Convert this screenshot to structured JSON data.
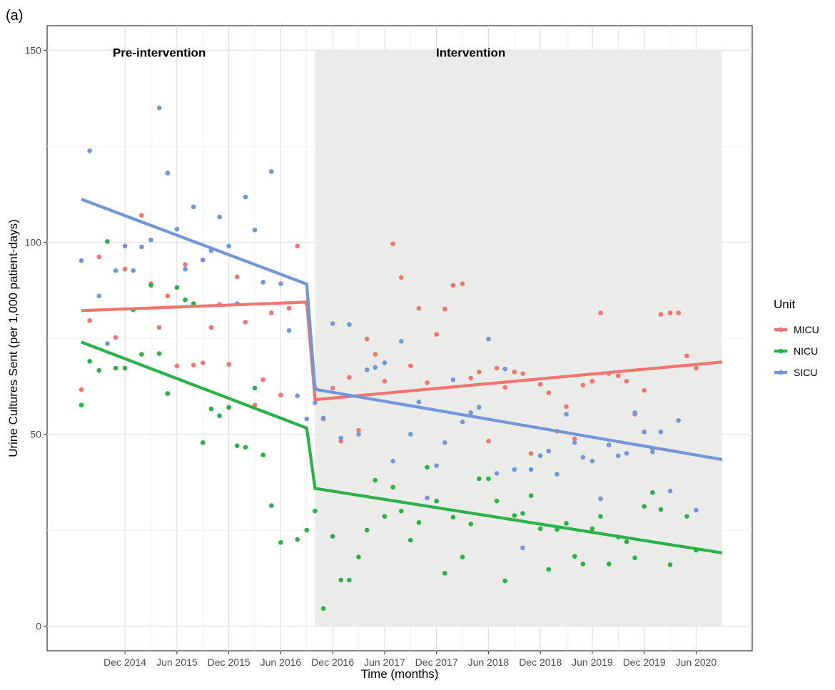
{
  "panel_label": "(a)",
  "colors": {
    "MICU": "#F0766D",
    "NICU": "#27B345",
    "SICU": "#6F97D9",
    "intervention_shade": "#EBEBEA",
    "grid": "#EBEBEB",
    "axis": "#333333",
    "tick_text": "#4D4D4D"
  },
  "chart_data": {
    "type": "scatter",
    "xlabel": "Time (months)",
    "ylabel": "Urine Cultures Sent (per 1,000 patient-days)",
    "ylim": [
      -6.4,
      156.4
    ],
    "xlim": [
      2014.17,
      2020.96
    ],
    "grid": true,
    "legend_title": "Unit",
    "legend_position": "right",
    "x_ticks": [
      {
        "value": 2014.92,
        "label": "Dec 2014"
      },
      {
        "value": 2015.42,
        "label": "Jun 2015"
      },
      {
        "value": 2015.92,
        "label": "Dec 2015"
      },
      {
        "value": 2016.42,
        "label": "Jun 2016"
      },
      {
        "value": 2016.92,
        "label": "Dec 2016"
      },
      {
        "value": 2017.42,
        "label": "Jun 2017"
      },
      {
        "value": 2017.92,
        "label": "Dec 2017"
      },
      {
        "value": 2018.42,
        "label": "Jun 2018"
      },
      {
        "value": 2018.92,
        "label": "Dec 2018"
      },
      {
        "value": 2019.42,
        "label": "Jun 2019"
      },
      {
        "value": 2019.92,
        "label": "Dec 2019"
      },
      {
        "value": 2020.42,
        "label": "Jun 2020"
      }
    ],
    "y_ticks": [
      0,
      50,
      100,
      150
    ],
    "regions": [
      {
        "label": "Pre-intervention",
        "x_start": null,
        "x_end": null,
        "label_x": 2015.25,
        "shaded": false
      },
      {
        "label": "Intervention",
        "x_start": 2016.75,
        "x_end": 2020.67,
        "label_x": 2018.25,
        "shaded": true
      }
    ],
    "series": [
      {
        "name": "MICU",
        "trend": [
          [
            2014.5,
            82.2
          ],
          [
            2016.67,
            84.4
          ],
          [
            2016.75,
            59.0
          ],
          [
            2020.67,
            68.8
          ]
        ],
        "points": [
          [
            2014.5,
            61.6
          ],
          [
            2014.58,
            79.6
          ],
          [
            2014.67,
            96.2
          ],
          [
            2014.83,
            75.2
          ],
          [
            2014.92,
            93.0
          ],
          [
            2015.0,
            82.4
          ],
          [
            2015.08,
            107.0
          ],
          [
            2015.17,
            89.2
          ],
          [
            2015.25,
            77.8
          ],
          [
            2015.33,
            86.0
          ],
          [
            2015.42,
            67.8
          ],
          [
            2015.5,
            94.2
          ],
          [
            2015.58,
            68.0
          ],
          [
            2015.67,
            68.6
          ],
          [
            2015.75,
            77.8
          ],
          [
            2015.83,
            83.8
          ],
          [
            2015.92,
            68.2
          ],
          [
            2016.0,
            91.0
          ],
          [
            2016.08,
            79.2
          ],
          [
            2016.17,
            57.6
          ],
          [
            2016.25,
            64.2
          ],
          [
            2016.33,
            81.6
          ],
          [
            2016.42,
            60.2
          ],
          [
            2016.5,
            82.8
          ],
          [
            2016.58,
            99.0
          ],
          [
            2016.67,
            84.0
          ],
          [
            2016.75,
            62.2
          ],
          [
            2016.83,
            54.0
          ],
          [
            2016.92,
            62.0
          ],
          [
            2017.0,
            48.2
          ],
          [
            2017.08,
            64.8
          ],
          [
            2017.17,
            51.0
          ],
          [
            2017.25,
            74.8
          ],
          [
            2017.33,
            70.8
          ],
          [
            2017.42,
            63.8
          ],
          [
            2017.5,
            99.6
          ],
          [
            2017.58,
            90.8
          ],
          [
            2017.67,
            67.8
          ],
          [
            2017.75,
            82.8
          ],
          [
            2017.83,
            63.4
          ],
          [
            2017.92,
            76.0
          ],
          [
            2018.0,
            82.6
          ],
          [
            2018.08,
            88.8
          ],
          [
            2018.17,
            89.2
          ],
          [
            2018.25,
            64.6
          ],
          [
            2018.33,
            66.2
          ],
          [
            2018.42,
            48.2
          ],
          [
            2018.5,
            67.2
          ],
          [
            2018.58,
            62.2
          ],
          [
            2018.67,
            66.2
          ],
          [
            2018.75,
            65.8
          ],
          [
            2018.83,
            45.0
          ],
          [
            2018.92,
            63.0
          ],
          [
            2019.0,
            60.8
          ],
          [
            2019.08,
            50.8
          ],
          [
            2019.17,
            57.2
          ],
          [
            2019.25,
            48.8
          ],
          [
            2019.33,
            62.8
          ],
          [
            2019.42,
            63.8
          ],
          [
            2019.5,
            81.6
          ],
          [
            2019.58,
            65.8
          ],
          [
            2019.67,
            65.2
          ],
          [
            2019.75,
            63.8
          ],
          [
            2019.83,
            55.2
          ],
          [
            2019.92,
            61.4
          ],
          [
            2020.0,
            46.2
          ],
          [
            2020.08,
            81.2
          ],
          [
            2020.17,
            81.6
          ],
          [
            2020.25,
            81.6
          ],
          [
            2020.33,
            70.4
          ],
          [
            2020.42,
            67.2
          ]
        ]
      },
      {
        "name": "NICU",
        "trend": [
          [
            2014.5,
            74.0
          ],
          [
            2016.67,
            51.6
          ],
          [
            2016.75,
            35.9
          ],
          [
            2020.67,
            19.1
          ]
        ],
        "points": [
          [
            2014.5,
            57.6
          ],
          [
            2014.58,
            69.0
          ],
          [
            2014.67,
            66.6
          ],
          [
            2014.75,
            100.2
          ],
          [
            2014.83,
            67.2
          ],
          [
            2014.92,
            67.2
          ],
          [
            2015.0,
            82.4
          ],
          [
            2015.08,
            70.8
          ],
          [
            2015.17,
            88.8
          ],
          [
            2015.25,
            71.0
          ],
          [
            2015.33,
            60.6
          ],
          [
            2015.42,
            88.2
          ],
          [
            2015.5,
            85.0
          ],
          [
            2015.58,
            84.0
          ],
          [
            2015.67,
            47.8
          ],
          [
            2015.75,
            56.6
          ],
          [
            2015.83,
            54.8
          ],
          [
            2015.92,
            57.0
          ],
          [
            2016.0,
            47.0
          ],
          [
            2016.08,
            46.6
          ],
          [
            2016.17,
            62.0
          ],
          [
            2016.25,
            44.6
          ],
          [
            2016.33,
            31.4
          ],
          [
            2016.42,
            21.8
          ],
          [
            2016.58,
            22.6
          ],
          [
            2016.67,
            25.0
          ],
          [
            2016.75,
            30.0
          ],
          [
            2016.83,
            4.6
          ],
          [
            2016.92,
            23.4
          ],
          [
            2017.0,
            12.0
          ],
          [
            2017.08,
            12.0
          ],
          [
            2017.17,
            18.0
          ],
          [
            2017.25,
            25.0
          ],
          [
            2017.33,
            38.0
          ],
          [
            2017.42,
            28.6
          ],
          [
            2017.5,
            36.2
          ],
          [
            2017.58,
            30.0
          ],
          [
            2017.67,
            22.4
          ],
          [
            2017.75,
            27.0
          ],
          [
            2017.83,
            41.4
          ],
          [
            2017.92,
            32.6
          ],
          [
            2018.0,
            13.8
          ],
          [
            2018.08,
            28.4
          ],
          [
            2018.17,
            18.0
          ],
          [
            2018.25,
            26.6
          ],
          [
            2018.33,
            38.4
          ],
          [
            2018.42,
            38.4
          ],
          [
            2018.5,
            32.6
          ],
          [
            2018.58,
            11.8
          ],
          [
            2018.67,
            28.8
          ],
          [
            2018.75,
            29.4
          ],
          [
            2018.83,
            34.0
          ],
          [
            2018.92,
            25.4
          ],
          [
            2019.0,
            14.8
          ],
          [
            2019.08,
            25.2
          ],
          [
            2019.17,
            26.8
          ],
          [
            2019.25,
            18.2
          ],
          [
            2019.33,
            16.2
          ],
          [
            2019.42,
            25.4
          ],
          [
            2019.5,
            28.6
          ],
          [
            2019.58,
            16.2
          ],
          [
            2019.67,
            23.2
          ],
          [
            2019.75,
            22.0
          ],
          [
            2019.83,
            17.8
          ],
          [
            2019.92,
            31.2
          ],
          [
            2020.0,
            34.8
          ],
          [
            2020.08,
            30.4
          ],
          [
            2020.17,
            16.0
          ],
          [
            2020.33,
            28.6
          ],
          [
            2020.42,
            19.8
          ]
        ]
      },
      {
        "name": "SICU",
        "trend": [
          [
            2014.5,
            111.2
          ],
          [
            2016.67,
            89.1
          ],
          [
            2016.75,
            61.7
          ],
          [
            2020.67,
            43.4
          ]
        ],
        "points": [
          [
            2014.5,
            95.2
          ],
          [
            2014.58,
            123.8
          ],
          [
            2014.67,
            86.0
          ],
          [
            2014.75,
            73.6
          ],
          [
            2014.83,
            92.6
          ],
          [
            2014.92,
            99.0
          ],
          [
            2015.0,
            92.6
          ],
          [
            2015.08,
            98.8
          ],
          [
            2015.17,
            100.6
          ],
          [
            2015.25,
            135.0
          ],
          [
            2015.33,
            118.0
          ],
          [
            2015.42,
            103.4
          ],
          [
            2015.5,
            93.0
          ],
          [
            2015.58,
            109.2
          ],
          [
            2015.67,
            95.4
          ],
          [
            2015.75,
            97.8
          ],
          [
            2015.83,
            106.6
          ],
          [
            2015.92,
            99.0
          ],
          [
            2016.0,
            84.0
          ],
          [
            2016.08,
            111.8
          ],
          [
            2016.17,
            103.2
          ],
          [
            2016.25,
            89.6
          ],
          [
            2016.33,
            118.4
          ],
          [
            2016.42,
            89.2
          ],
          [
            2016.5,
            77.0
          ],
          [
            2016.58,
            60.0
          ],
          [
            2016.67,
            54.0
          ],
          [
            2016.75,
            58.2
          ],
          [
            2016.83,
            54.2
          ],
          [
            2016.92,
            78.8
          ],
          [
            2017.0,
            49.0
          ],
          [
            2017.08,
            78.6
          ],
          [
            2017.17,
            50.0
          ],
          [
            2017.25,
            66.8
          ],
          [
            2017.33,
            67.4
          ],
          [
            2017.42,
            68.6
          ],
          [
            2017.5,
            43.0
          ],
          [
            2017.58,
            74.2
          ],
          [
            2017.67,
            50.0
          ],
          [
            2017.75,
            58.4
          ],
          [
            2017.83,
            33.4
          ],
          [
            2017.92,
            41.8
          ],
          [
            2018.0,
            47.8
          ],
          [
            2018.08,
            64.2
          ],
          [
            2018.17,
            53.2
          ],
          [
            2018.25,
            55.6
          ],
          [
            2018.33,
            57.0
          ],
          [
            2018.42,
            74.8
          ],
          [
            2018.5,
            39.8
          ],
          [
            2018.58,
            67.0
          ],
          [
            2018.67,
            40.8
          ],
          [
            2018.75,
            20.4
          ],
          [
            2018.83,
            40.8
          ],
          [
            2018.92,
            44.4
          ],
          [
            2019.0,
            45.6
          ],
          [
            2019.08,
            39.6
          ],
          [
            2019.17,
            55.2
          ],
          [
            2019.25,
            47.8
          ],
          [
            2019.33,
            44.0
          ],
          [
            2019.42,
            43.0
          ],
          [
            2019.5,
            33.2
          ],
          [
            2019.58,
            47.2
          ],
          [
            2019.67,
            44.4
          ],
          [
            2019.75,
            45.0
          ],
          [
            2019.83,
            55.6
          ],
          [
            2019.92,
            50.6
          ],
          [
            2020.0,
            45.4
          ],
          [
            2020.08,
            50.6
          ],
          [
            2020.17,
            35.2
          ],
          [
            2020.25,
            53.6
          ],
          [
            2020.42,
            30.2
          ]
        ]
      }
    ]
  }
}
